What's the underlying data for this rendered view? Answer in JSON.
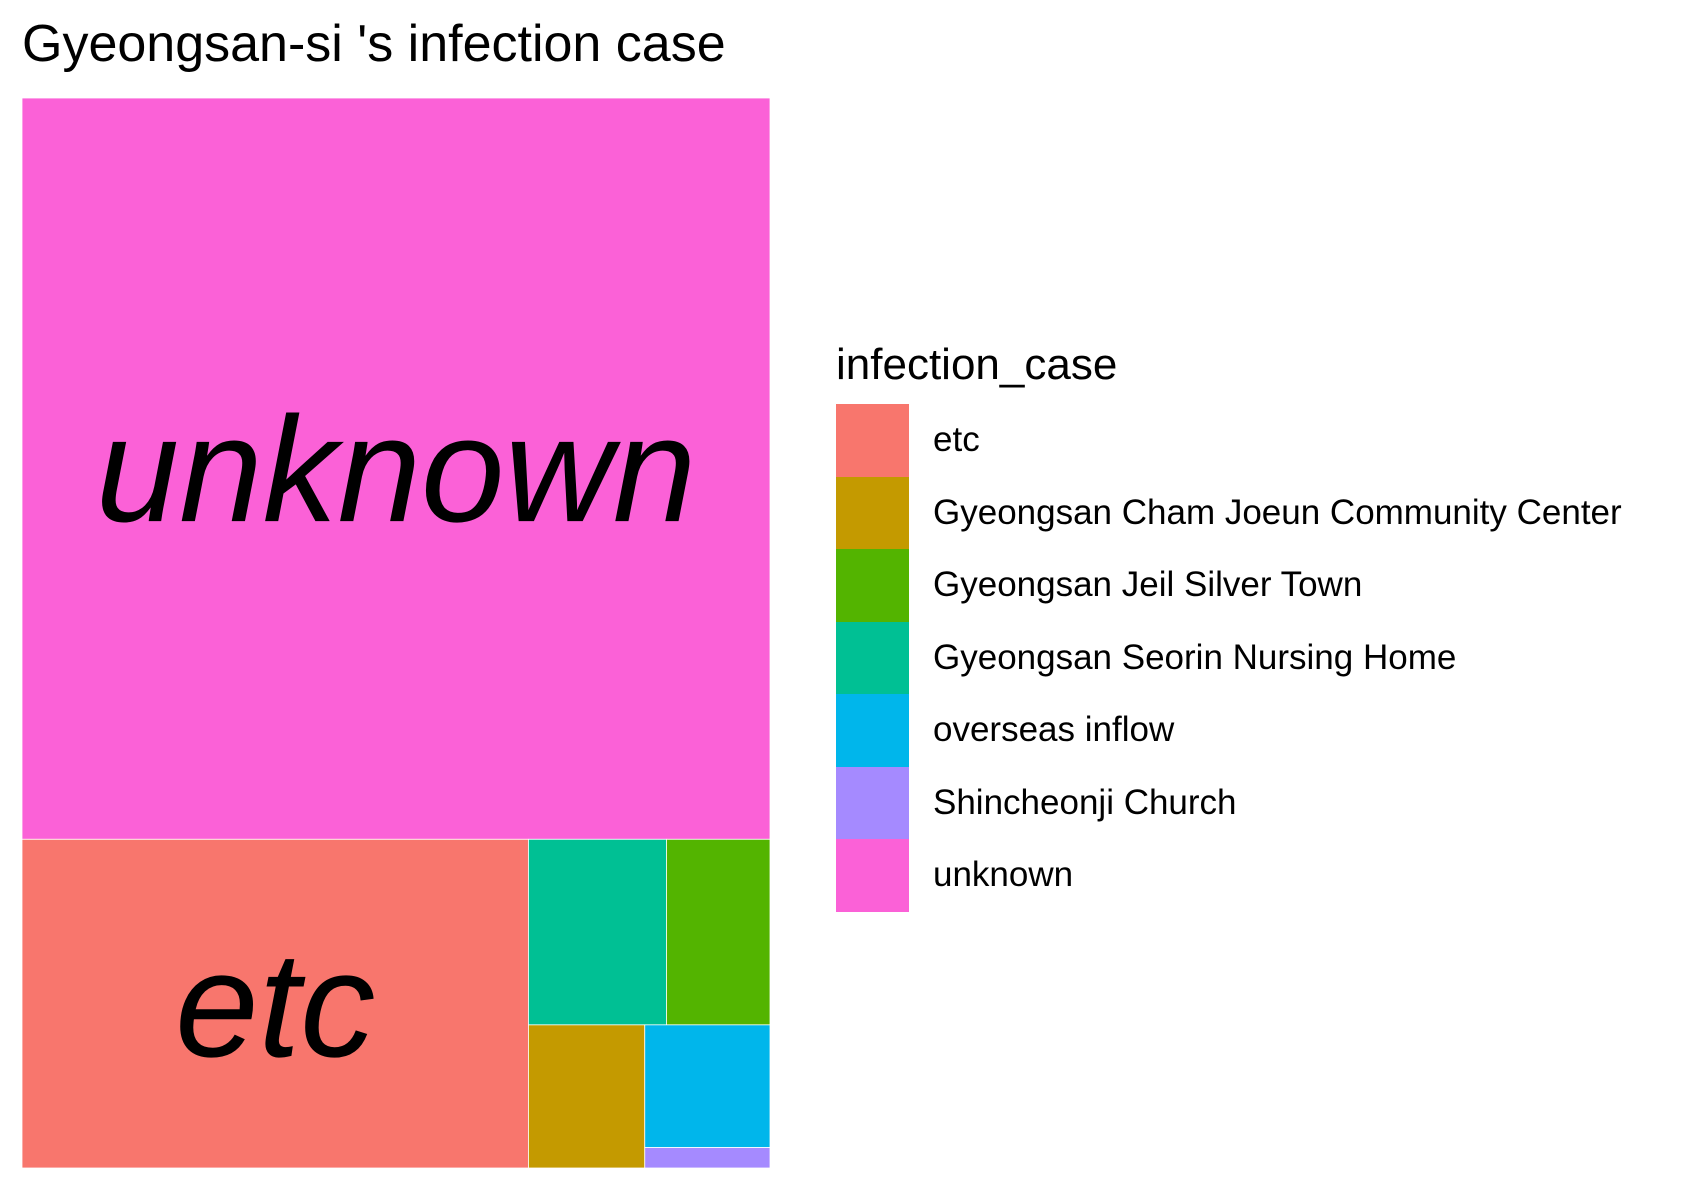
{
  "chart_data": {
    "type": "treemap",
    "title": "Gyeongsan-si 's infection case",
    "legend": {
      "title": "infection_case",
      "position": "right"
    },
    "categories": [
      "etc",
      "Gyeongsan Cham Joeun Community Center",
      "Gyeongsan Jeil Silver Town",
      "Gyeongsan Seorin Nursing Home",
      "overseas inflow",
      "Shincheonji Church",
      "unknown"
    ],
    "values": [
      130,
      13,
      15,
      20,
      12,
      2,
      433
    ],
    "colors": [
      "#F8766D",
      "#C49A00",
      "#53B400",
      "#00C094",
      "#00B6EB",
      "#A58AFF",
      "#FB61D7"
    ],
    "labels": [
      "etc",
      "",
      "",
      "",
      "",
      "",
      "unknown"
    ]
  }
}
